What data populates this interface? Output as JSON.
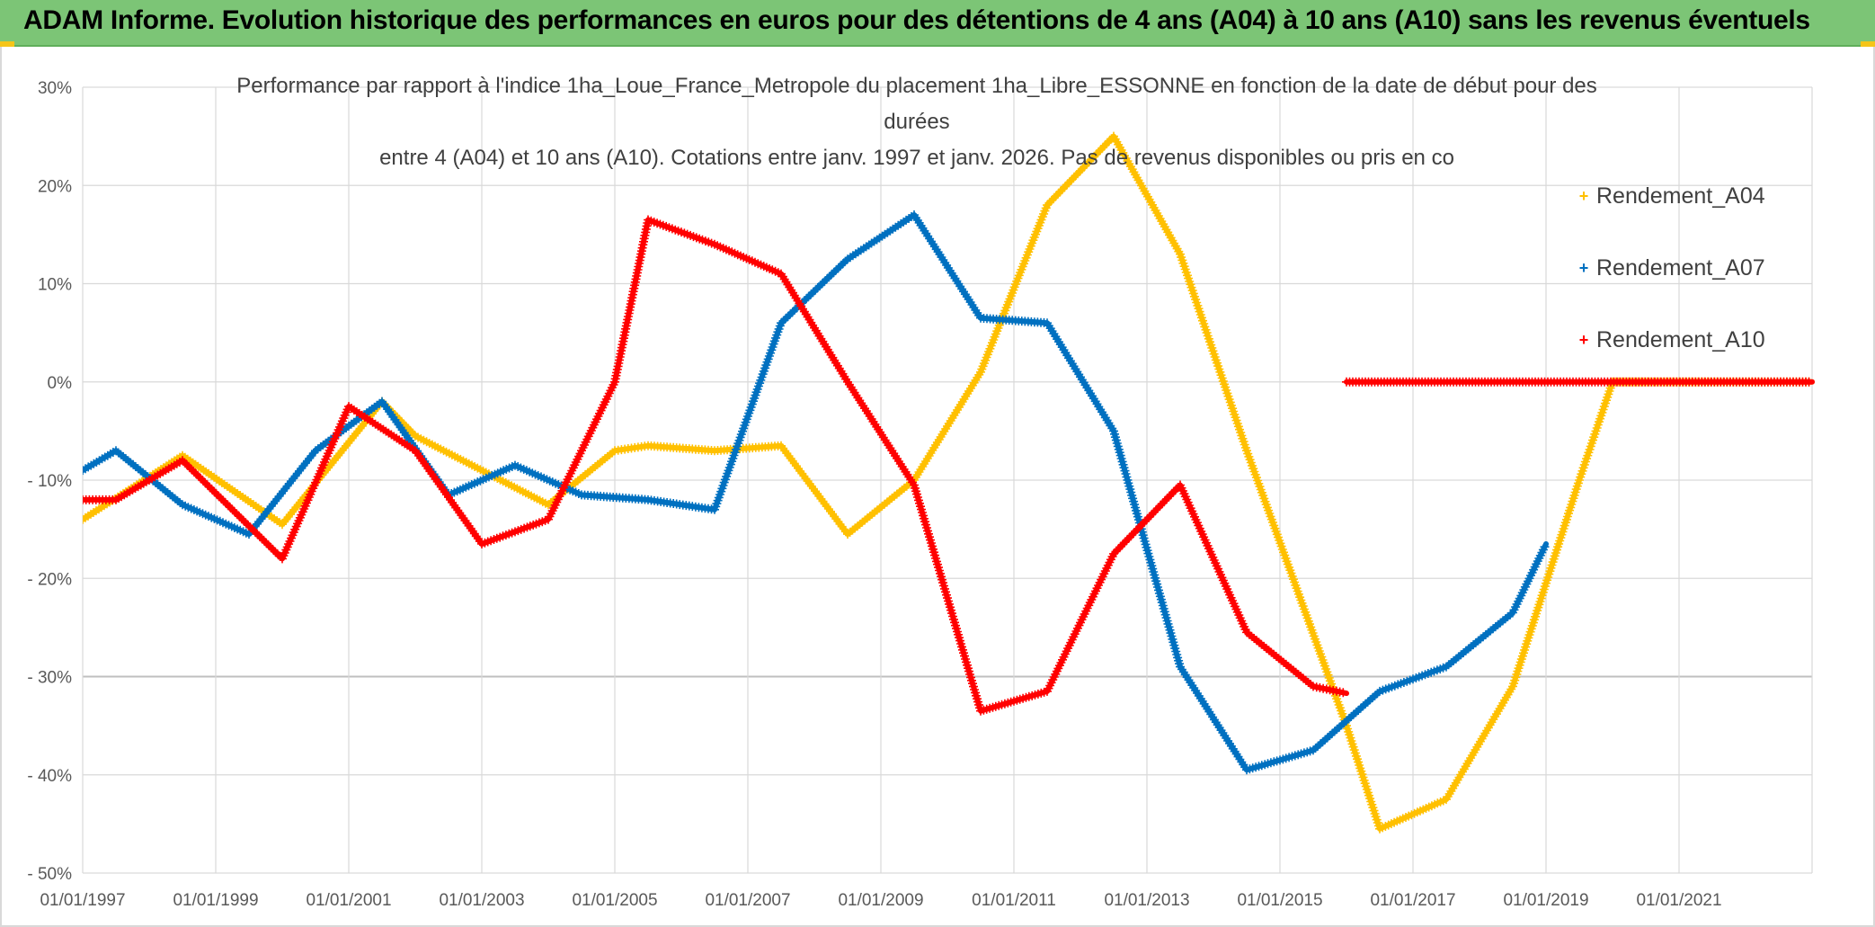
{
  "header": {
    "banner_text": "ADAM Informe. Evolution historique des performances en euros pour des détentions de 4 ans (A04) à 10 ans (A10) sans les revenus éventuels"
  },
  "colors": {
    "banner_bg": "#7cc576",
    "grid": "#d9d9d9",
    "axis_text": "#595959",
    "A04": "#ffc000",
    "A07": "#0070c0",
    "A10": "#ff0000"
  },
  "chart_data": {
    "type": "line",
    "title_lines": [
      "Performance par rapport à l'indice 1ha_Loue_France_Metropole  du placement 1ha_Libre_ESSONNE en fonction de la date de début pour des",
      "durées",
      "entre 4 (A04) et 10 ans (A10). Cotations entre janv. 1997 et janv. 2026. Pas de revenus disponibles ou pris en co"
    ],
    "xlim": [
      1997.0,
      2023.0
    ],
    "ylim": [
      -50,
      30
    ],
    "y_ticks": [
      {
        "value": 30,
        "label": "30%"
      },
      {
        "value": 20,
        "label": "20%"
      },
      {
        "value": 10,
        "label": "10%"
      },
      {
        "value": 0,
        "label": "0%"
      },
      {
        "value": -10,
        "label": "- 10%"
      },
      {
        "value": -20,
        "label": "- 20%"
      },
      {
        "value": -30,
        "label": "- 30%"
      },
      {
        "value": -40,
        "label": "- 40%"
      },
      {
        "value": -50,
        "label": "- 50%"
      }
    ],
    "x_ticks": [
      {
        "value": 1997,
        "label": "01/01/1997"
      },
      {
        "value": 1999,
        "label": "01/01/1999"
      },
      {
        "value": 2001,
        "label": "01/01/2001"
      },
      {
        "value": 2003,
        "label": "01/01/2003"
      },
      {
        "value": 2005,
        "label": "01/01/2005"
      },
      {
        "value": 2007,
        "label": "01/01/2007"
      },
      {
        "value": 2009,
        "label": "01/01/2009"
      },
      {
        "value": 2011,
        "label": "01/01/2011"
      },
      {
        "value": 2013,
        "label": "01/01/2013"
      },
      {
        "value": 2015,
        "label": "01/01/2015"
      },
      {
        "value": 2017,
        "label": "01/01/2017"
      },
      {
        "value": 2019,
        "label": "01/01/2019"
      },
      {
        "value": 2021,
        "label": "01/01/2021"
      }
    ],
    "series": [
      {
        "name": "Rendement_A04",
        "color": "#ffc000",
        "points": [
          [
            1997.0,
            -14.0
          ],
          [
            1998.5,
            -7.5
          ],
          [
            2000.0,
            -14.5
          ],
          [
            2001.5,
            -2.0
          ],
          [
            2002.0,
            -5.5
          ],
          [
            2004.0,
            -12.5
          ],
          [
            2005.0,
            -7.0
          ],
          [
            2005.5,
            -6.5
          ],
          [
            2006.5,
            -7.0
          ],
          [
            2007.5,
            -6.5
          ],
          [
            2008.5,
            -15.5
          ],
          [
            2009.5,
            -10.0
          ],
          [
            2010.5,
            1.0
          ],
          [
            2011.5,
            18.0
          ],
          [
            2012.5,
            25.0
          ],
          [
            2013.5,
            13.0
          ],
          [
            2014.5,
            -7.0
          ],
          [
            2016.0,
            -35.0
          ],
          [
            2016.5,
            -45.5
          ],
          [
            2017.5,
            -42.5
          ],
          [
            2018.5,
            -31.0
          ],
          [
            2019.5,
            -10.0
          ],
          [
            2020.0,
            0.0
          ],
          [
            2023.0,
            0.0
          ]
        ]
      },
      {
        "name": "Rendement_A07",
        "color": "#0070c0",
        "points": [
          [
            1997.0,
            -9.0
          ],
          [
            1997.5,
            -7.0
          ],
          [
            1998.5,
            -12.5
          ],
          [
            1999.5,
            -15.5
          ],
          [
            2000.5,
            -7.0
          ],
          [
            2001.5,
            -2.0
          ],
          [
            2002.5,
            -11.5
          ],
          [
            2003.5,
            -8.5
          ],
          [
            2004.5,
            -11.5
          ],
          [
            2005.5,
            -12.0
          ],
          [
            2006.5,
            -13.0
          ],
          [
            2007.5,
            6.0
          ],
          [
            2008.5,
            12.5
          ],
          [
            2009.5,
            17.0
          ],
          [
            2010.5,
            6.5
          ],
          [
            2011.5,
            6.0
          ],
          [
            2012.5,
            -5.0
          ],
          [
            2013.5,
            -29.0
          ],
          [
            2014.5,
            -39.5
          ],
          [
            2015.5,
            -37.5
          ],
          [
            2016.5,
            -31.5
          ],
          [
            2017.5,
            -29.0
          ],
          [
            2018.5,
            -23.5
          ],
          [
            2019.0,
            -16.5
          ]
        ]
      },
      {
        "name": "Rendement_A10",
        "color": "#ff0000",
        "points": [
          [
            1997.0,
            -12.0
          ],
          [
            1997.5,
            -12.0
          ],
          [
            1998.5,
            -8.0
          ],
          [
            2000.0,
            -18.0
          ],
          [
            2001.0,
            -2.5
          ],
          [
            2002.0,
            -7.0
          ],
          [
            2003.0,
            -16.5
          ],
          [
            2004.0,
            -14.0
          ],
          [
            2005.0,
            0.0
          ],
          [
            2005.5,
            16.5
          ],
          [
            2006.5,
            14.0
          ],
          [
            2007.5,
            11.0
          ],
          [
            2008.5,
            0.0
          ],
          [
            2009.5,
            -10.5
          ],
          [
            2010.5,
            -33.5
          ],
          [
            2011.5,
            -31.5
          ],
          [
            2012.5,
            -17.5
          ],
          [
            2013.5,
            -10.5
          ],
          [
            2014.5,
            -25.5
          ],
          [
            2015.5,
            -31.0
          ],
          [
            2016.0,
            -31.7
          ]
        ],
        "extra_segment": [
          [
            2016.0,
            0.0
          ],
          [
            2023.0,
            0.0
          ]
        ]
      }
    ],
    "legend": [
      "Rendement_A04",
      "Rendement_A07",
      "Rendement_A10"
    ],
    "legend_position": "top-right",
    "grid": true
  }
}
